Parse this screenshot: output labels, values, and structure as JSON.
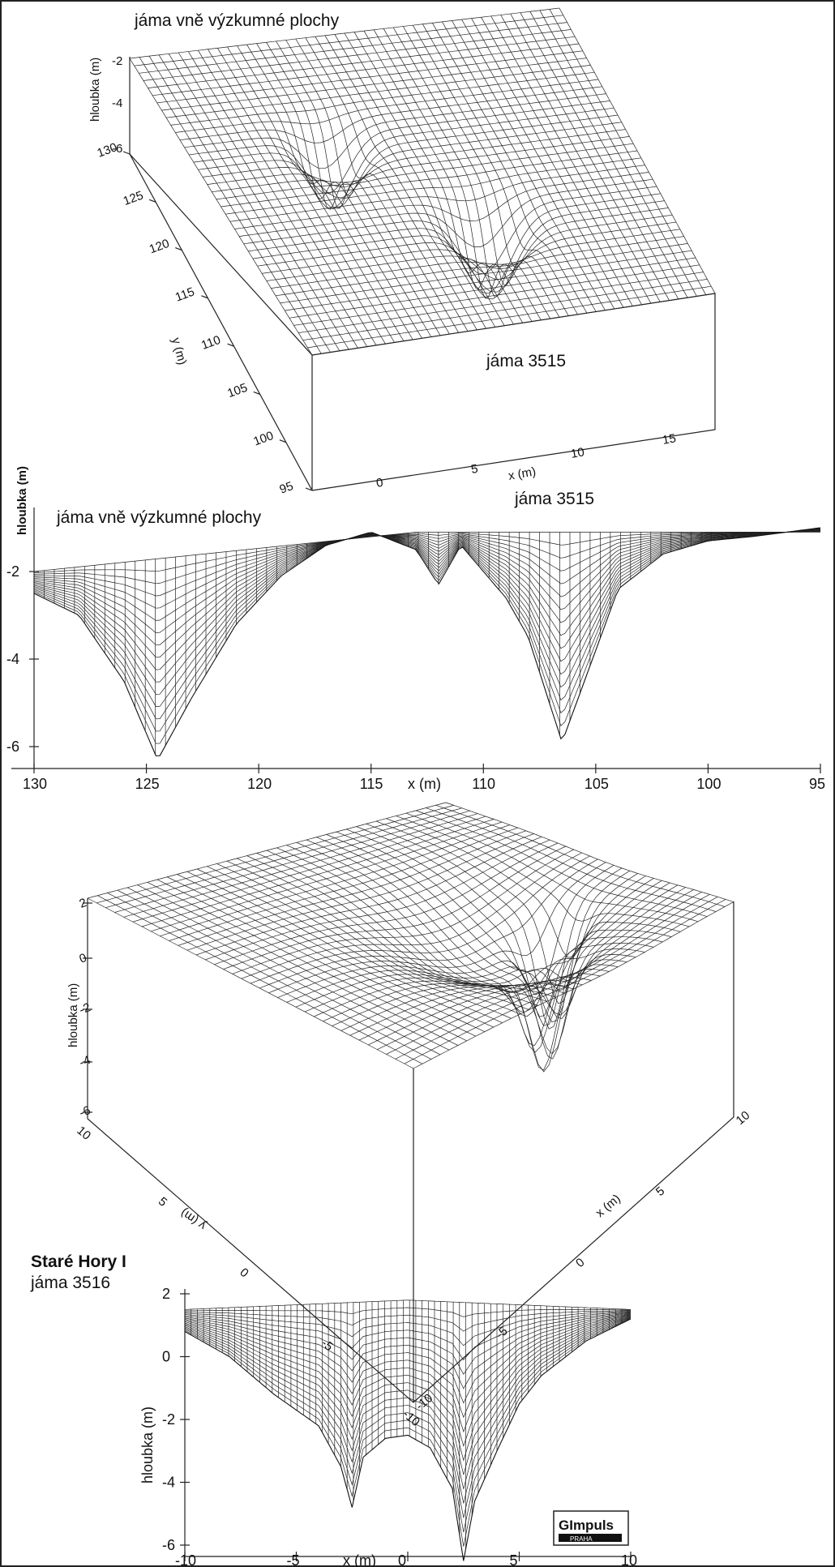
{
  "chart_data": [
    {
      "type": "surface-3d",
      "annotations": [
        "jáma vně výzkumné plochy",
        "jáma 3515"
      ],
      "zlabel": "hloubka (m)",
      "zticks": [
        "-2",
        "-4",
        "-6"
      ],
      "ylabel": "y (m)",
      "yticks": [
        "130",
        "125",
        "120",
        "115",
        "110",
        "105",
        "100",
        "95"
      ],
      "xlabel": "x (m)",
      "xticks": [
        "0",
        "5",
        "10",
        "15"
      ]
    },
    {
      "type": "surface-profile",
      "annotations": [
        "jáma vně výzkumné plochy",
        "jáma 3515"
      ],
      "ylabel": "hloubka (m)",
      "yticks": [
        "-2",
        "-4",
        "-6"
      ],
      "xlabel": "x (m)",
      "xticks": [
        "130",
        "125",
        "120",
        "115",
        "110",
        "105",
        "100",
        "95"
      ],
      "profile": {
        "x": [
          130,
          128,
          126,
          124.5,
          123,
          121,
          119,
          117,
          115,
          113,
          112,
          111,
          109,
          108,
          106.5,
          104,
          102,
          100,
          98,
          95
        ],
        "y": [
          -2.5,
          -3.0,
          -4.5,
          -6.3,
          -4.9,
          -3.2,
          -2.1,
          -1.4,
          -1.1,
          -1.5,
          -2.3,
          -1.4,
          -2.6,
          -3.5,
          -5.9,
          -2.4,
          -1.6,
          -1.3,
          -1.2,
          -1.0
        ]
      }
    },
    {
      "type": "surface-3d",
      "zlabel": "hloubka (m)",
      "zticks": [
        "2",
        "0",
        "-2",
        "-4",
        "-6"
      ],
      "ylabel": "y (m)",
      "yticks": [
        "10",
        "5",
        "0",
        "-5",
        "-10"
      ],
      "xlabel": "x (m)",
      "xticks": [
        "-10",
        "-5",
        "0",
        "5",
        "10"
      ]
    },
    {
      "type": "surface-profile",
      "annotations": [
        "Staré Hory I",
        "jáma 3516"
      ],
      "ylabel": "hloubka (m)",
      "yticks": [
        "2",
        "0",
        "-2",
        "-4",
        "-6"
      ],
      "xlabel": "x (m)",
      "xticks": [
        "-10",
        "-5",
        "0",
        "5",
        "10"
      ],
      "profile": {
        "x": [
          -10,
          -8,
          -6,
          -4,
          -3,
          -2.5,
          -2,
          -1,
          0,
          1,
          2,
          2.5,
          3,
          4,
          5,
          6,
          8,
          10
        ],
        "y": [
          0.8,
          0,
          -1.2,
          -2.2,
          -3.5,
          -4.8,
          -3.2,
          -2.6,
          -2.5,
          -2.9,
          -4.2,
          -6.5,
          -4.6,
          -3.0,
          -1.5,
          -0.6,
          0.5,
          1.2
        ]
      }
    }
  ],
  "logo": {
    "text": "GImpuls",
    "subtext": "PRAHA"
  }
}
